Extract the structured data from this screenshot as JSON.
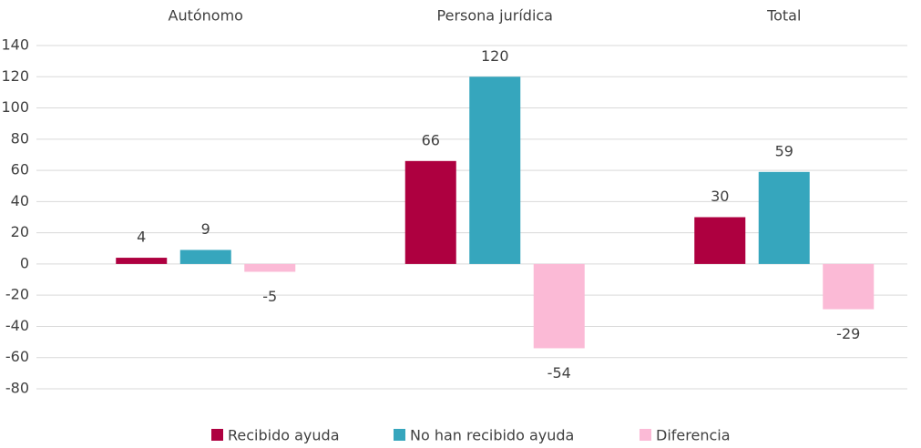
{
  "chart_data": {
    "type": "bar",
    "categories": [
      "Autónomo",
      "Persona jurídica",
      "Total"
    ],
    "series": [
      {
        "name": "Recibido ayuda",
        "color": "#ae0040",
        "values": [
          4,
          66,
          30
        ]
      },
      {
        "name": "No han recibido ayuda",
        "color": "#36a6bd",
        "values": [
          9,
          120,
          59
        ]
      },
      {
        "name": "Diferencia",
        "color": "#fbbad6",
        "values": [
          -5,
          -54,
          -29
        ]
      }
    ],
    "ylim": [
      -80,
      140
    ],
    "yticks": [
      -80,
      -60,
      -40,
      -20,
      0,
      20,
      40,
      60,
      80,
      100,
      120,
      140
    ],
    "grid": true,
    "legend": "bottom"
  }
}
